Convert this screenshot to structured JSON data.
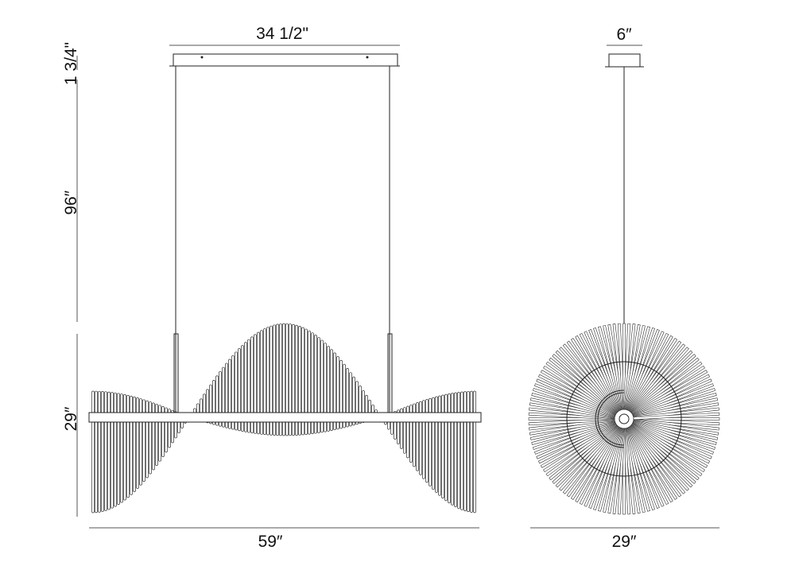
{
  "front_view": {
    "canopy_width": "34 1/2\"",
    "canopy_height": "1 3/4\"",
    "drop_length": "96″",
    "fixture_height": "29″",
    "fixture_width": "59″"
  },
  "side_view": {
    "canopy_width": "6″",
    "fixture_diameter": "29″"
  },
  "colors": {
    "line": "#222222",
    "dimension": "#555555",
    "background": "#ffffff"
  }
}
